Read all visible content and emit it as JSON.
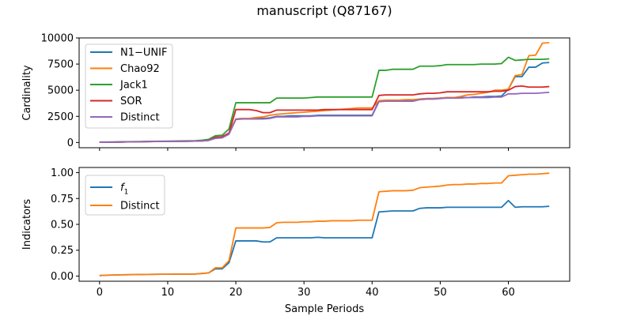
{
  "figure": {
    "title": "manuscript (Q87167)"
  },
  "chart_data": [
    {
      "type": "line",
      "title": "manuscript (Q87167)",
      "xlabel": "",
      "ylabel": "Cardinality",
      "xlim": [
        -3,
        69
      ],
      "ylim": [
        -500,
        10000
      ],
      "xticks": [
        0,
        10,
        20,
        30,
        40,
        50,
        60
      ],
      "xtick_labels": [
        "",
        "",
        "",
        "",
        "",
        "",
        ""
      ],
      "yticks": [
        0,
        2500,
        5000,
        7500,
        10000
      ],
      "ytick_labels": [
        "0",
        "2500",
        "5000",
        "7500",
        "10000"
      ],
      "grid": false,
      "legend_position": "upper-left",
      "x": [
        0,
        1,
        2,
        3,
        4,
        5,
        6,
        7,
        8,
        9,
        10,
        11,
        12,
        13,
        14,
        15,
        16,
        17,
        18,
        19,
        20,
        21,
        22,
        23,
        24,
        25,
        26,
        27,
        28,
        29,
        30,
        31,
        32,
        33,
        34,
        35,
        36,
        37,
        38,
        39,
        40,
        41,
        42,
        43,
        44,
        45,
        46,
        47,
        48,
        49,
        50,
        51,
        52,
        53,
        54,
        55,
        56,
        57,
        58,
        59,
        60,
        61,
        62,
        63,
        64,
        65,
        66
      ],
      "series": [
        {
          "name": "N1−UNIF",
          "color": "#1f77b4",
          "values": [
            20,
            25,
            35,
            45,
            55,
            65,
            75,
            85,
            95,
            105,
            110,
            115,
            120,
            125,
            130,
            150,
            200,
            500,
            550,
            900,
            2250,
            2300,
            2300,
            2300,
            2300,
            2350,
            2500,
            2500,
            2550,
            2550,
            2550,
            2550,
            2600,
            2600,
            2600,
            2600,
            2600,
            2600,
            2600,
            2600,
            2600,
            4000,
            4000,
            4000,
            4000,
            4050,
            4050,
            4150,
            4200,
            4200,
            4250,
            4300,
            4300,
            4300,
            4300,
            4350,
            4350,
            4400,
            4400,
            4450,
            5100,
            6300,
            6300,
            7200,
            7200,
            7600,
            7650
          ]
        },
        {
          "name": "Chao92",
          "color": "#ff7f0e",
          "values": [
            20,
            25,
            35,
            45,
            55,
            65,
            75,
            85,
            95,
            105,
            110,
            115,
            120,
            125,
            130,
            150,
            200,
            500,
            550,
            900,
            2250,
            2300,
            2300,
            2400,
            2450,
            2600,
            2700,
            2750,
            2800,
            2850,
            2900,
            2950,
            3000,
            3050,
            3100,
            3150,
            3200,
            3250,
            3300,
            3300,
            3300,
            4000,
            4050,
            4050,
            4050,
            4100,
            4100,
            4150,
            4200,
            4200,
            4250,
            4300,
            4300,
            4400,
            4550,
            4600,
            4700,
            4800,
            5000,
            5000,
            5100,
            6400,
            6500,
            8300,
            8350,
            9500,
            9550
          ]
        },
        {
          "name": "Jack1",
          "color": "#2ca02c",
          "values": [
            40,
            45,
            55,
            65,
            75,
            85,
            95,
            105,
            115,
            125,
            130,
            140,
            150,
            160,
            165,
            220,
            300,
            650,
            700,
            1300,
            3800,
            3800,
            3800,
            3800,
            3800,
            3800,
            4250,
            4250,
            4250,
            4250,
            4250,
            4300,
            4350,
            4350,
            4350,
            4350,
            4350,
            4350,
            4350,
            4350,
            4350,
            6900,
            6900,
            7000,
            7000,
            7000,
            7000,
            7300,
            7300,
            7300,
            7350,
            7450,
            7450,
            7450,
            7450,
            7450,
            7500,
            7500,
            7500,
            7550,
            8150,
            7850,
            7900,
            7950,
            7950,
            7950,
            8000
          ]
        },
        {
          "name": "SOR",
          "color": "#d62728",
          "values": [
            20,
            25,
            35,
            45,
            55,
            65,
            75,
            85,
            95,
            105,
            110,
            115,
            120,
            125,
            130,
            150,
            200,
            500,
            550,
            900,
            3150,
            3150,
            3150,
            3050,
            2850,
            2850,
            3100,
            3100,
            3100,
            3100,
            3100,
            3100,
            3100,
            3150,
            3150,
            3150,
            3150,
            3150,
            3150,
            3150,
            3150,
            4500,
            4550,
            4550,
            4550,
            4550,
            4550,
            4650,
            4700,
            4700,
            4750,
            4850,
            4850,
            4850,
            4850,
            4850,
            4850,
            4850,
            4900,
            4900,
            5000,
            5350,
            5400,
            5300,
            5300,
            5300,
            5350
          ]
        },
        {
          "name": "Distinct",
          "color": "#9467bd",
          "values": [
            20,
            25,
            35,
            45,
            55,
            65,
            75,
            85,
            95,
            105,
            110,
            115,
            120,
            125,
            130,
            150,
            200,
            400,
            450,
            800,
            2200,
            2250,
            2250,
            2250,
            2250,
            2300,
            2450,
            2450,
            2450,
            2450,
            2500,
            2500,
            2550,
            2550,
            2550,
            2550,
            2550,
            2550,
            2550,
            2550,
            2550,
            3900,
            3950,
            3950,
            3950,
            3950,
            3950,
            4100,
            4150,
            4150,
            4200,
            4250,
            4250,
            4250,
            4300,
            4300,
            4300,
            4300,
            4350,
            4350,
            4650,
            4650,
            4700,
            4700,
            4700,
            4750,
            4800
          ]
        }
      ]
    },
    {
      "type": "line",
      "title": "",
      "xlabel": "Sample Periods",
      "ylabel": "Indicators",
      "xlim": [
        -3,
        69
      ],
      "ylim": [
        -0.05,
        1.05
      ],
      "xticks": [
        0,
        10,
        20,
        30,
        40,
        50,
        60
      ],
      "xtick_labels": [
        "0",
        "10",
        "20",
        "30",
        "40",
        "50",
        "60"
      ],
      "yticks": [
        0,
        0.25,
        0.5,
        0.75,
        1.0
      ],
      "ytick_labels": [
        "0.00",
        "0.25",
        "0.50",
        "0.75",
        "1.00"
      ],
      "grid": false,
      "legend_position": "upper-left",
      "x": [
        0,
        1,
        2,
        3,
        4,
        5,
        6,
        7,
        8,
        9,
        10,
        11,
        12,
        13,
        14,
        15,
        16,
        17,
        18,
        19,
        20,
        21,
        22,
        23,
        24,
        25,
        26,
        27,
        28,
        29,
        30,
        31,
        32,
        33,
        34,
        35,
        36,
        37,
        38,
        39,
        40,
        41,
        42,
        43,
        44,
        45,
        46,
        47,
        48,
        49,
        50,
        51,
        52,
        53,
        54,
        55,
        56,
        57,
        58,
        59,
        60,
        61,
        62,
        63,
        64,
        65,
        66
      ],
      "series": [
        {
          "name": "f1",
          "label_parts": [
            "f",
            "1"
          ],
          "color": "#1f77b4",
          "values": [
            0.005,
            0.008,
            0.01,
            0.012,
            0.013,
            0.014,
            0.015,
            0.016,
            0.017,
            0.018,
            0.018,
            0.019,
            0.019,
            0.019,
            0.02,
            0.025,
            0.03,
            0.07,
            0.07,
            0.13,
            0.34,
            0.34,
            0.34,
            0.34,
            0.33,
            0.33,
            0.37,
            0.37,
            0.37,
            0.37,
            0.37,
            0.37,
            0.375,
            0.37,
            0.37,
            0.37,
            0.37,
            0.37,
            0.37,
            0.37,
            0.37,
            0.62,
            0.625,
            0.63,
            0.63,
            0.63,
            0.63,
            0.655,
            0.66,
            0.66,
            0.66,
            0.665,
            0.665,
            0.665,
            0.665,
            0.665,
            0.665,
            0.665,
            0.665,
            0.665,
            0.73,
            0.665,
            0.67,
            0.67,
            0.67,
            0.67,
            0.675
          ]
        },
        {
          "name": "Distinct",
          "color": "#ff7f0e",
          "values": [
            0.005,
            0.008,
            0.01,
            0.012,
            0.013,
            0.014,
            0.015,
            0.016,
            0.017,
            0.018,
            0.018,
            0.019,
            0.019,
            0.019,
            0.02,
            0.025,
            0.03,
            0.08,
            0.08,
            0.15,
            0.465,
            0.465,
            0.465,
            0.465,
            0.465,
            0.47,
            0.515,
            0.52,
            0.52,
            0.52,
            0.525,
            0.525,
            0.53,
            0.53,
            0.535,
            0.535,
            0.535,
            0.535,
            0.54,
            0.54,
            0.54,
            0.815,
            0.82,
            0.825,
            0.825,
            0.825,
            0.83,
            0.855,
            0.86,
            0.865,
            0.87,
            0.88,
            0.885,
            0.885,
            0.89,
            0.89,
            0.895,
            0.895,
            0.9,
            0.9,
            0.97,
            0.975,
            0.98,
            0.985,
            0.985,
            0.99,
            0.995
          ]
        }
      ]
    }
  ]
}
